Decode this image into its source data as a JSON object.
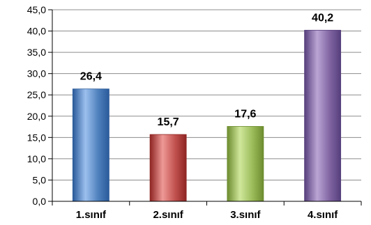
{
  "chart_data": {
    "type": "bar",
    "categories": [
      "1.sınıf",
      "2.sınıf",
      "3.sınıf",
      "4.sınıf"
    ],
    "values": [
      26.4,
      15.7,
      17.6,
      40.2
    ],
    "value_labels": [
      "26,4",
      "15,7",
      "17,6",
      "40,2"
    ],
    "ylim": [
      0,
      45
    ],
    "yticks": [
      0,
      5,
      10,
      15,
      20,
      25,
      30,
      35,
      40,
      45
    ],
    "ytick_labels": [
      "0,0",
      "5,0",
      "10,0",
      "15,0",
      "20,0",
      "25,0",
      "30,0",
      "35,0",
      "40,0",
      "45,0"
    ],
    "grid": true,
    "legend": "none",
    "title": "",
    "xlabel": "",
    "ylabel": "",
    "colors": [
      "#4f81bd",
      "#c0504d",
      "#9bbb59",
      "#8064a2"
    ],
    "gradient_light": [
      "#9cc0ee",
      "#ee9996",
      "#cfe79c",
      "#baa5d4"
    ],
    "gradient_dark": [
      "#2a5a9a",
      "#8e2523",
      "#6c8c2e",
      "#563f7c"
    ]
  }
}
